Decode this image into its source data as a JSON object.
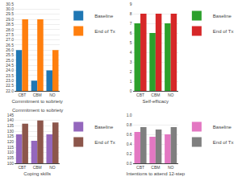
{
  "chart_data": [
    {
      "type": "bar",
      "x_label": "Commitment to sobriety",
      "categories": [
        "CBT",
        "CBM",
        "NO"
      ],
      "series": [
        {
          "name": "Baseline",
          "values": [
            26.0,
            23.0,
            24.0
          ]
        },
        {
          "name": "End of Tx",
          "values": [
            29.0,
            29.0,
            26.0
          ]
        }
      ],
      "ylim": [
        22,
        30.5
      ],
      "yticks": [
        {
          "value": 22,
          "label": "22.0"
        },
        22.5,
        {
          "value": 23,
          "label": "23.0"
        },
        23.5,
        {
          "value": 24,
          "label": "24.0"
        },
        24.5,
        {
          "value": 25,
          "label": "25.0"
        },
        25.5,
        {
          "value": 26,
          "label": "26.0"
        },
        26.5,
        {
          "value": 27,
          "label": "27.0"
        },
        27.5,
        {
          "value": 28,
          "label": "28.0"
        },
        28.5,
        {
          "value": 29,
          "label": "29.0"
        },
        29.5,
        {
          "value": 30,
          "label": "30.0"
        },
        30.5
      ],
      "grid": true,
      "legend": "right"
    },
    {
      "type": "bar",
      "x_label": "Self-efficacy",
      "categories": [
        "CBT",
        "CBM",
        "NO"
      ],
      "series": [
        {
          "name": "Baseline",
          "values": [
            7.0,
            6.0,
            7.0
          ]
        },
        {
          "name": "End of Tx",
          "values": [
            8.0,
            8.0,
            8.0
          ]
        }
      ],
      "ylim": [
        0,
        9
      ],
      "yticks": [
        0,
        1,
        2,
        3,
        4,
        5,
        6,
        7,
        8,
        9
      ],
      "grid": true,
      "legend": "right"
    },
    {
      "type": "bar",
      "title": "Commitment to sobriety",
      "x_label": "Coping skills",
      "categories": [
        "CBT",
        "CBM",
        "NO"
      ],
      "series": [
        {
          "name": "Baseline",
          "values": [
            127.0,
            121.0,
            127.0
          ]
        },
        {
          "name": "End of Tx",
          "values": [
            137.0,
            140.0,
            138.0
          ]
        }
      ],
      "ylim": [
        100,
        145
      ],
      "yticks": [
        100,
        105,
        110,
        115,
        120,
        125,
        130,
        135,
        140,
        145
      ],
      "grid": true,
      "legend": "right"
    },
    {
      "type": "bar",
      "x_label": "Intentions to attend 12-step",
      "categories": [
        "CBT",
        "CBM",
        "NO"
      ],
      "series": [
        {
          "name": "Baseline",
          "values": [
            0.65,
            0.55,
            0.6
          ]
        },
        {
          "name": "End of Tx",
          "values": [
            0.75,
            0.7,
            0.75
          ]
        }
      ],
      "ylim": [
        0.0,
        1.0
      ],
      "yticks": [
        {
          "value": 0,
          "label": "0.0"
        },
        0.2,
        0.4,
        0.6,
        0.8,
        {
          "value": 1,
          "label": "1.0"
        }
      ],
      "grid": true,
      "legend": "right"
    }
  ]
}
